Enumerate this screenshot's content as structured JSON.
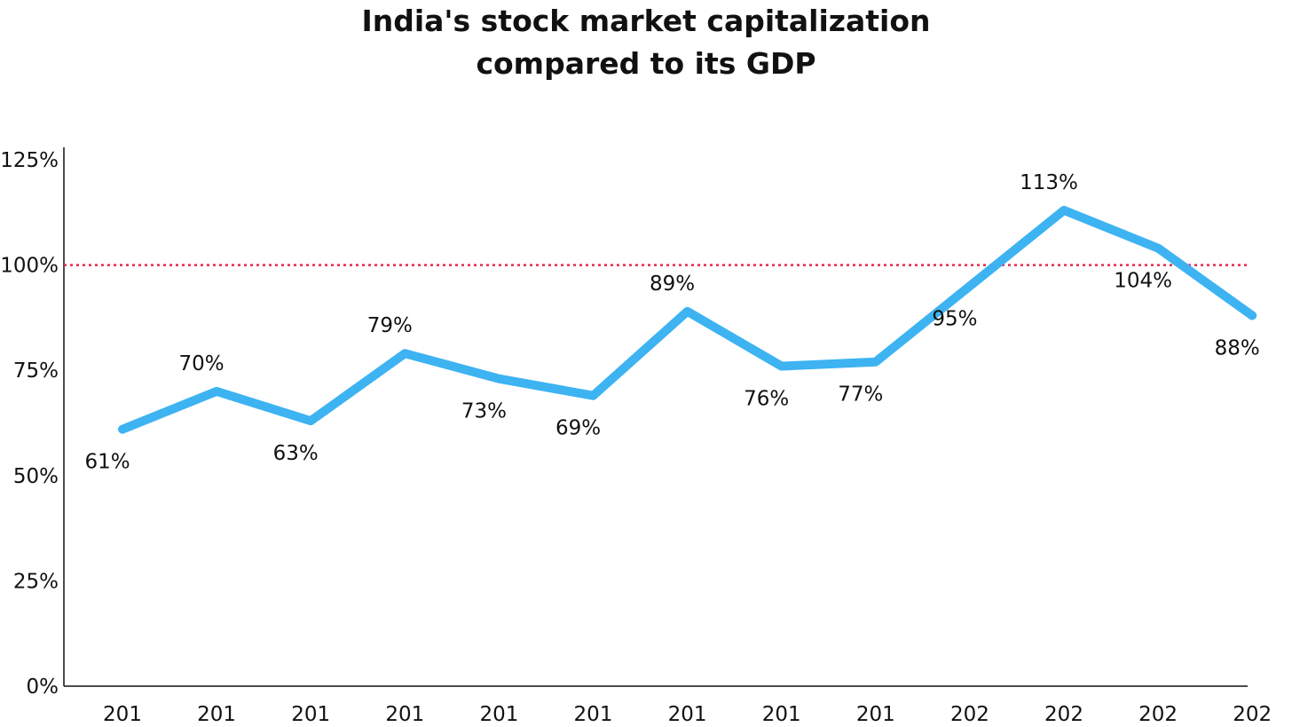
{
  "chart_data": {
    "type": "line",
    "title_lines": [
      "India's stock market capitalization",
      "compared to its GDP"
    ],
    "categories": [
      "201",
      "201",
      "201",
      "201",
      "201",
      "201",
      "201",
      "201",
      "201",
      "202",
      "202",
      "202",
      "202"
    ],
    "series": [
      {
        "values": [
          61,
          70,
          63,
          79,
          73,
          69,
          89,
          76,
          77,
          95,
          113,
          104,
          88
        ],
        "data_labels": [
          "61%",
          "70%",
          "63%",
          "79%",
          "73%",
          "69%",
          "89%",
          "76%",
          "77%",
          "95%",
          "113%",
          "104%",
          "88%"
        ],
        "color": "#3db3f2"
      }
    ],
    "y_ticks": [
      0,
      25,
      50,
      75,
      100,
      125
    ],
    "y_tick_labels": [
      "0%",
      "25%",
      "50%",
      "75%",
      "100%",
      "125%"
    ],
    "ylim": [
      0,
      125
    ],
    "reference_line": {
      "value": 100,
      "style": "dotted",
      "color": "#e8274b"
    },
    "grid": false,
    "legend": "none"
  }
}
